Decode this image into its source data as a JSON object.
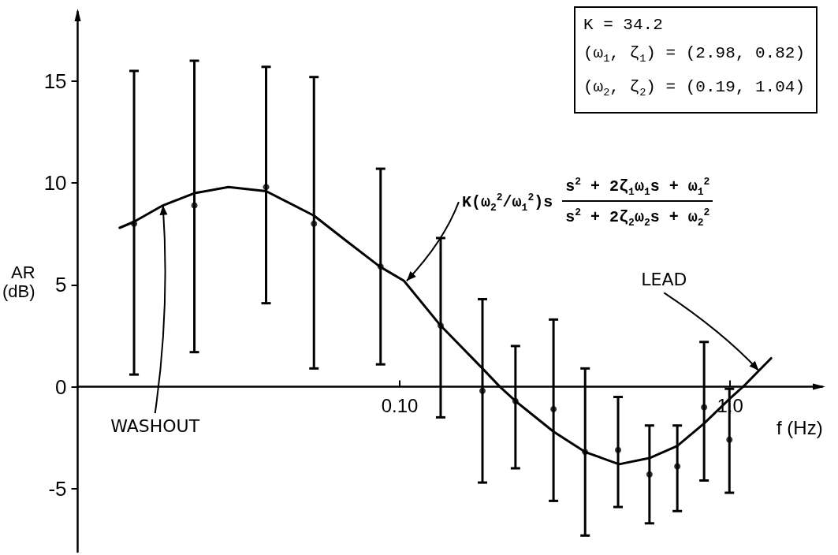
{
  "chart_data": {
    "type": "scatter",
    "xlabel": "f (Hz)",
    "ylabel": "AR (dB)",
    "log": "x",
    "xlim": [
      0.0106,
      1.9
    ],
    "ylim": [
      -8.1,
      18.4
    ],
    "xticks": [
      {
        "value": 0.1,
        "label": "0.10"
      },
      {
        "value": 1,
        "label": "1.0"
      }
    ],
    "yticks": [
      -5,
      0,
      5,
      10,
      15
    ],
    "series": [
      {
        "color": "#000000",
        "marker": "circle",
        "x": [
          0.0157,
          0.0239,
          0.0394,
          0.055,
          0.0875,
          0.133,
          0.178,
          0.224,
          0.292,
          0.364,
          0.458,
          0.57,
          0.692,
          0.834,
          0.995
        ],
        "values": [
          8.0,
          8.9,
          9.8,
          8.0,
          5.9,
          3.0,
          -0.2,
          -0.7,
          -1.1,
          -3.2,
          -3.1,
          -4.3,
          -3.9,
          -1.0,
          -2.6
        ],
        "errors": [
          [
            0.6,
            15.5
          ],
          [
            1.7,
            16.0
          ],
          [
            4.1,
            15.7
          ],
          [
            0.9,
            15.2
          ],
          [
            1.1,
            10.7
          ],
          [
            -1.5,
            7.3
          ],
          [
            -4.7,
            4.3
          ],
          [
            -4.0,
            2.0
          ],
          [
            -5.6,
            3.3
          ],
          [
            -7.3,
            0.9
          ],
          [
            -5.9,
            -0.5
          ],
          [
            -6.7,
            -1.9
          ],
          [
            -6.1,
            -1.9
          ],
          [
            -4.6,
            2.2
          ],
          [
            -5.2,
            -0.1
          ]
        ]
      },
      {
        "type": "line",
        "color": "#000000",
        "marker": "none",
        "line_style": "solid",
        "x": [
          0.0142,
          0.0157,
          0.0192,
          0.0239,
          0.0303,
          0.0394,
          0.055,
          0.0684,
          0.087,
          0.103,
          0.133,
          0.178,
          0.201,
          0.224,
          0.292,
          0.364,
          0.461,
          0.57,
          0.692,
          0.834,
          0.995,
          1.11,
          1.33
        ],
        "values": [
          7.8,
          8.1,
          8.9,
          9.5,
          9.8,
          9.6,
          8.4,
          7.2,
          5.9,
          5.2,
          3.0,
          0.9,
          0.0,
          -0.7,
          -2.2,
          -3.2,
          -3.8,
          -3.5,
          -2.9,
          -1.8,
          -0.6,
          0.1,
          1.4
        ]
      }
    ],
    "annotations": [
      "K = 34.2",
      "(ω$_{1}$, ζ$_{1}$) = (2.98, 0.82)",
      "(ω$_{2}$, ζ$_{2}$) = (0.19, 1.04)",
      {
        "text": "K(ω$_{2}$$^{2}$/ω$_{1}$$^{2}$)s",
        "x": 0.105,
        "y": 5.2
      },
      "s$^{2}$ + 2ζ$_{1}$ω$_{1}$s + ω$_{1}$$^{2}$",
      "s$^{2}$ + 2ζ$_{2}$ω$_{2}$s + ω$_{2}$$^{2}$",
      {
        "text": "WASHOUT",
        "x": 0.0192,
        "y": 8.9
      },
      {
        "text": "LEAD",
        "x": 1.22,
        "y": 0.8
      }
    ]
  }
}
